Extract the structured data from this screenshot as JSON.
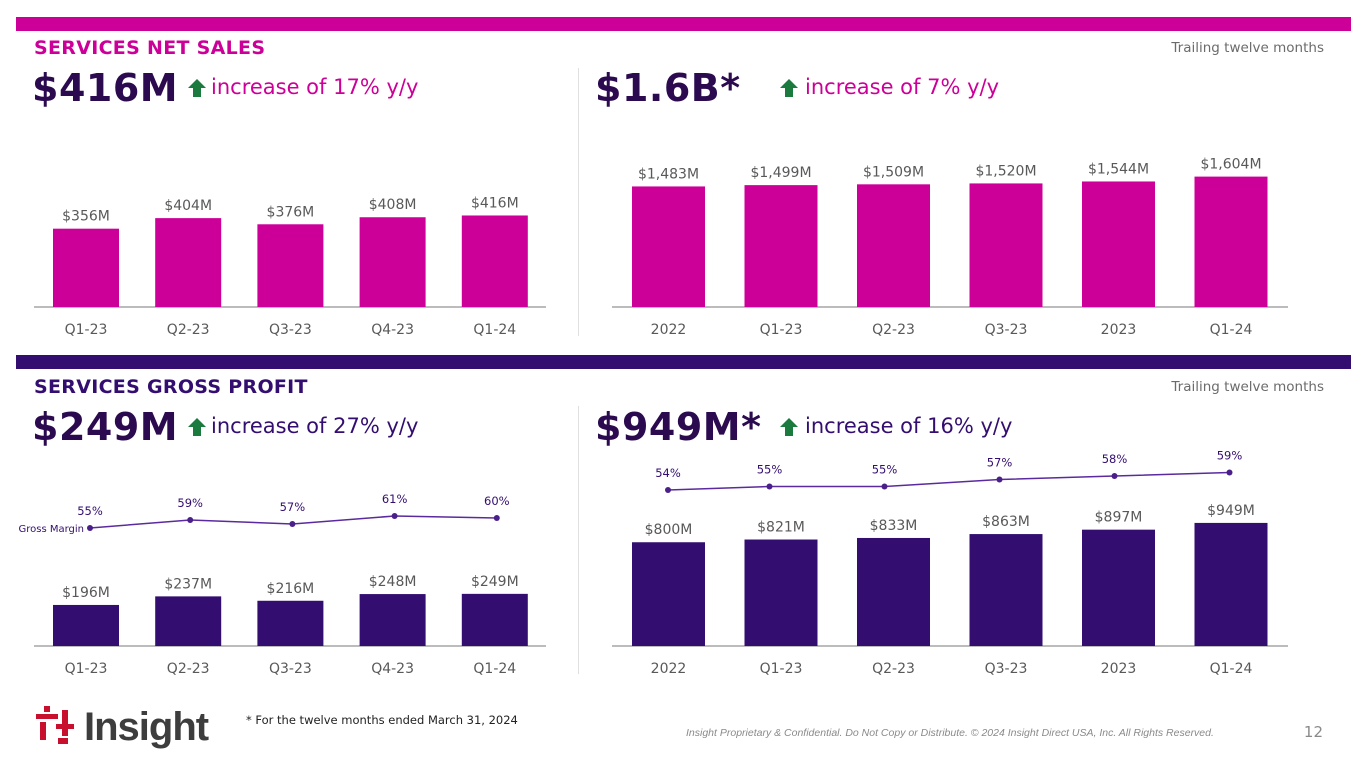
{
  "colors": {
    "magenta": "#cc0099",
    "purple": "#330e70",
    "green": "#1b7a3e",
    "navy": "#2b0a4f",
    "grid": "#a6a6a6",
    "tick": "#595959"
  },
  "net_sales": {
    "section_title": "SERVICES NET SALES",
    "ttm_label": "Trailing twelve months",
    "quarterly": {
      "big_value": "$416M",
      "increase_text": "increase of 17% y/y"
    },
    "ttm": {
      "big_value": "$1.6B*",
      "increase_text": "increase of 7% y/y"
    }
  },
  "gross_profit": {
    "section_title": "SERVICES GROSS PROFIT",
    "ttm_label": "Trailing twelve months",
    "quarterly": {
      "big_value": "$249M",
      "increase_text": "increase of 27% y/y",
      "margin_series_label": "Gross Margin"
    },
    "ttm": {
      "big_value": "$949M*",
      "increase_text": "increase of 16% y/y"
    }
  },
  "chart_data": [
    {
      "id": "ns_q",
      "type": "bar",
      "title": "Services Net Sales (quarterly)",
      "categories": [
        "Q1-23",
        "Q2-23",
        "Q3-23",
        "Q4-23",
        "Q1-24"
      ],
      "values": [
        356,
        404,
        376,
        408,
        416
      ],
      "labels": [
        "$356M",
        "$404M",
        "$376M",
        "$408M",
        "$416M"
      ],
      "unit": "$M",
      "color": "#cc0099"
    },
    {
      "id": "ns_t",
      "type": "bar",
      "title": "Services Net Sales (trailing twelve months)",
      "categories": [
        "2022",
        "Q1-23",
        "Q2-23",
        "Q3-23",
        "2023",
        "Q1-24"
      ],
      "values": [
        1483,
        1499,
        1509,
        1520,
        1544,
        1604
      ],
      "labels": [
        "$1,483M",
        "$1,499M",
        "$1,509M",
        "$1,520M",
        "$1,544M",
        "$1,604M"
      ],
      "unit": "$M",
      "color": "#cc0099"
    },
    {
      "id": "gp_q",
      "type": "bar",
      "title": "Services Gross Profit (quarterly)",
      "categories": [
        "Q1-23",
        "Q2-23",
        "Q3-23",
        "Q4-23",
        "Q1-24"
      ],
      "values": [
        196,
        237,
        216,
        248,
        249
      ],
      "labels": [
        "$196M",
        "$237M",
        "$216M",
        "$248M",
        "$249M"
      ],
      "unit": "$M",
      "color": "#330e70",
      "margin": {
        "name": "Gross Margin",
        "values": [
          55,
          59,
          57,
          61,
          60
        ],
        "labels": [
          "55%",
          "59%",
          "57%",
          "61%",
          "60%"
        ]
      }
    },
    {
      "id": "gp_t",
      "type": "bar",
      "title": "Services Gross Profit (trailing twelve months)",
      "categories": [
        "2022",
        "Q1-23",
        "Q2-23",
        "Q3-23",
        "2023",
        "Q1-24"
      ],
      "values": [
        800,
        821,
        833,
        863,
        897,
        949
      ],
      "labels": [
        "$800M",
        "$821M",
        "$833M",
        "$863M",
        "$897M",
        "$949M"
      ],
      "unit": "$M",
      "color": "#330e70",
      "margin": {
        "name": "Gross Margin",
        "values": [
          54,
          55,
          55,
          57,
          58,
          59
        ],
        "labels": [
          "54%",
          "55%",
          "55%",
          "57%",
          "58%",
          "59%"
        ]
      }
    }
  ],
  "footer": {
    "logo_text": "Insight",
    "footnote": "* For the twelve months ended March 31, 2024",
    "legal": "Insight Proprietary & Confidential. Do Not Copy or Distribute. © 2024 Insight Direct USA, Inc. All Rights Reserved.",
    "page_number": "12"
  }
}
